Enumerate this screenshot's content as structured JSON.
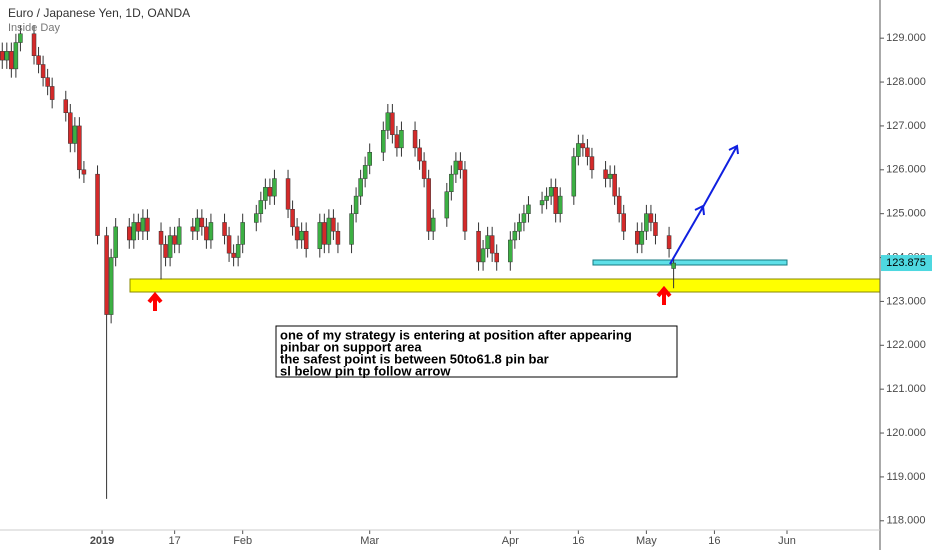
{
  "chart_data": {
    "type": "candlestick",
    "title": "Euro / Japanese Yen, 1D, OANDA",
    "subtitle": "Inside Day",
    "x": [
      -22,
      -21,
      -20,
      -19,
      -18,
      -15,
      -14,
      -13,
      -12,
      -11,
      -8,
      -7,
      -6,
      -5,
      -4,
      -1,
      1,
      2,
      3,
      6,
      7,
      8,
      9,
      10,
      13,
      14,
      15,
      16,
      17,
      20,
      21,
      22,
      23,
      24,
      27,
      28,
      29,
      30,
      31,
      34,
      35,
      36,
      37,
      38,
      41,
      42,
      43,
      44,
      45,
      48,
      49,
      50,
      51,
      52,
      55,
      56,
      57,
      58,
      59,
      62,
      63,
      64,
      65,
      66,
      69,
      70,
      71,
      72,
      73,
      76,
      77,
      78,
      79,
      80,
      83,
      84,
      85,
      86,
      87,
      90,
      91,
      92,
      93,
      94,
      97,
      98,
      99,
      100,
      101,
      104,
      105,
      106,
      107,
      108,
      111,
      112,
      113,
      114,
      115,
      118,
      119,
      120,
      121,
      122,
      125,
      126
    ],
    "open": [
      128.7,
      128.5,
      128.7,
      128.3,
      128.9,
      129.1,
      128.6,
      128.4,
      128.1,
      127.9,
      127.6,
      127.3,
      126.6,
      127.0,
      126.0,
      125.9,
      124.5,
      122.7,
      124.0,
      124.7,
      124.4,
      124.8,
      124.6,
      124.9,
      124.6,
      124.3,
      124.0,
      124.5,
      124.3,
      124.7,
      124.6,
      124.9,
      124.7,
      124.4,
      124.8,
      124.5,
      124.1,
      124.0,
      124.3,
      124.8,
      125.0,
      125.3,
      125.6,
      125.4,
      125.8,
      125.1,
      124.7,
      124.4,
      124.6,
      124.2,
      124.8,
      124.3,
      124.9,
      124.6,
      124.3,
      125.0,
      125.4,
      125.8,
      126.1,
      126.4,
      126.9,
      127.3,
      126.8,
      126.5,
      126.9,
      126.5,
      126.2,
      125.8,
      124.6,
      124.9,
      125.5,
      125.9,
      126.2,
      126.0,
      124.6,
      123.9,
      124.2,
      124.5,
      124.1,
      123.9,
      124.4,
      124.6,
      124.8,
      125.0,
      125.2,
      125.3,
      125.4,
      125.6,
      125.0,
      125.4,
      126.3,
      126.6,
      126.5,
      126.3,
      126.0,
      125.8,
      125.9,
      125.4,
      125.0,
      124.6,
      124.3,
      124.6,
      125.0,
      124.8,
      124.5,
      123.75
    ],
    "high": [
      128.9,
      128.9,
      128.9,
      129.1,
      129.3,
      129.3,
      128.8,
      128.6,
      128.3,
      128.1,
      127.8,
      127.5,
      127.2,
      127.2,
      126.2,
      126.1,
      124.7,
      124.2,
      124.9,
      124.9,
      125.0,
      125.0,
      125.1,
      125.1,
      124.8,
      124.5,
      124.7,
      124.7,
      124.9,
      124.9,
      125.1,
      125.1,
      124.9,
      125.0,
      125.0,
      124.7,
      124.3,
      124.5,
      125.0,
      125.2,
      125.5,
      125.8,
      125.8,
      126.0,
      126.0,
      125.3,
      124.9,
      124.8,
      124.8,
      125.0,
      125.0,
      125.1,
      125.1,
      124.8,
      125.2,
      125.6,
      126.0,
      126.3,
      126.6,
      127.1,
      127.5,
      127.5,
      127.0,
      127.1,
      127.1,
      126.7,
      126.4,
      126.0,
      125.1,
      125.7,
      126.1,
      126.4,
      126.4,
      126.2,
      124.8,
      124.4,
      124.7,
      124.7,
      124.3,
      124.6,
      124.8,
      125.0,
      125.2,
      125.4,
      125.5,
      125.6,
      125.8,
      125.8,
      125.6,
      126.5,
      126.8,
      126.8,
      126.7,
      126.5,
      126.2,
      126.1,
      126.1,
      125.6,
      125.2,
      124.8,
      124.8,
      125.2,
      125.2,
      125.0,
      124.7,
      124.0
    ],
    "low": [
      128.3,
      128.3,
      128.1,
      128.1,
      128.7,
      128.4,
      128.2,
      127.9,
      127.7,
      127.4,
      127.1,
      126.4,
      126.4,
      125.8,
      125.7,
      124.3,
      118.5,
      122.5,
      123.8,
      124.2,
      124.2,
      124.4,
      124.4,
      124.4,
      123.5,
      123.8,
      123.8,
      124.1,
      124.1,
      124.4,
      124.4,
      124.5,
      124.2,
      124.2,
      124.3,
      123.9,
      123.8,
      123.8,
      124.1,
      124.6,
      124.8,
      125.1,
      125.2,
      125.2,
      124.9,
      124.5,
      124.2,
      124.2,
      124.0,
      124.0,
      124.1,
      124.1,
      124.4,
      124.1,
      124.1,
      124.8,
      125.2,
      125.6,
      125.9,
      126.2,
      126.7,
      126.6,
      126.3,
      126.3,
      126.3,
      126.0,
      125.6,
      124.4,
      124.4,
      124.7,
      125.3,
      125.7,
      125.8,
      124.4,
      123.7,
      123.7,
      124.0,
      123.9,
      123.7,
      123.7,
      124.2,
      124.4,
      124.6,
      124.8,
      125.0,
      125.1,
      125.2,
      124.8,
      124.8,
      125.2,
      126.1,
      126.3,
      126.1,
      125.8,
      125.6,
      125.6,
      125.2,
      124.8,
      124.4,
      124.1,
      124.1,
      124.4,
      124.6,
      124.3,
      124.0,
      123.3
    ],
    "close": [
      128.5,
      128.7,
      128.3,
      128.9,
      129.1,
      128.6,
      128.4,
      128.1,
      127.9,
      127.6,
      127.3,
      126.6,
      127.0,
      126.0,
      125.9,
      124.5,
      122.7,
      124.0,
      124.7,
      124.4,
      124.8,
      124.6,
      124.9,
      124.6,
      124.3,
      124.0,
      124.5,
      124.3,
      124.7,
      124.6,
      124.9,
      124.7,
      124.4,
      124.8,
      124.5,
      124.1,
      124.0,
      124.3,
      124.8,
      125.0,
      125.3,
      125.6,
      125.4,
      125.8,
      125.1,
      124.7,
      124.4,
      124.6,
      124.2,
      124.8,
      124.3,
      124.9,
      124.6,
      124.3,
      125.0,
      125.4,
      125.8,
      126.1,
      126.4,
      126.9,
      127.3,
      126.8,
      126.5,
      126.9,
      126.5,
      126.2,
      125.8,
      124.6,
      124.9,
      125.5,
      125.9,
      126.2,
      126.0,
      124.6,
      123.9,
      124.2,
      124.5,
      124.1,
      123.9,
      124.4,
      124.6,
      124.8,
      125.0,
      125.2,
      125.3,
      125.4,
      125.6,
      125.0,
      125.4,
      126.3,
      126.6,
      126.5,
      126.3,
      126.0,
      125.8,
      125.9,
      125.4,
      125.0,
      124.6,
      124.3,
      124.6,
      125.0,
      124.8,
      124.5,
      124.2,
      123.875
    ],
    "up_color": "#3cb043",
    "down_color": "#d42a2a",
    "wick_color": "#333333",
    "xlim": [
      -22.5,
      171.5
    ],
    "xticks": [
      {
        "value": 0,
        "label": "2019"
      },
      {
        "value": 16,
        "label": "17"
      },
      {
        "value": 31,
        "label": "Feb"
      },
      {
        "value": 59,
        "label": "Mar"
      },
      {
        "value": 90,
        "label": "Apr"
      },
      {
        "value": 105,
        "label": "16"
      },
      {
        "value": 120,
        "label": "May"
      },
      {
        "value": 135,
        "label": "16"
      },
      {
        "value": 151,
        "label": "Jun"
      }
    ],
    "ylim": [
      117.79,
      129.87
    ],
    "yticks": [
      {
        "value": 118,
        "label": "118.000"
      },
      {
        "value": 119,
        "label": "119.000"
      },
      {
        "value": 120,
        "label": "120.000"
      },
      {
        "value": 121,
        "label": "121.000"
      },
      {
        "value": 122,
        "label": "122.000"
      },
      {
        "value": 123,
        "label": "123.000"
      },
      {
        "value": 124,
        "label": "124.000"
      },
      {
        "value": 125,
        "label": "125.000"
      },
      {
        "value": 126,
        "label": "126.000"
      },
      {
        "value": 127,
        "label": "127.000"
      },
      {
        "value": 128,
        "label": "128.000"
      },
      {
        "value": 129,
        "label": "129.000"
      }
    ],
    "annotation": [
      "one of my strategy is entering at position after appearing",
      "pinbar on support area",
      "the safest point is between 50to61.8 pin bar",
      "sl below pin tp follow arrow"
    ]
  }
}
